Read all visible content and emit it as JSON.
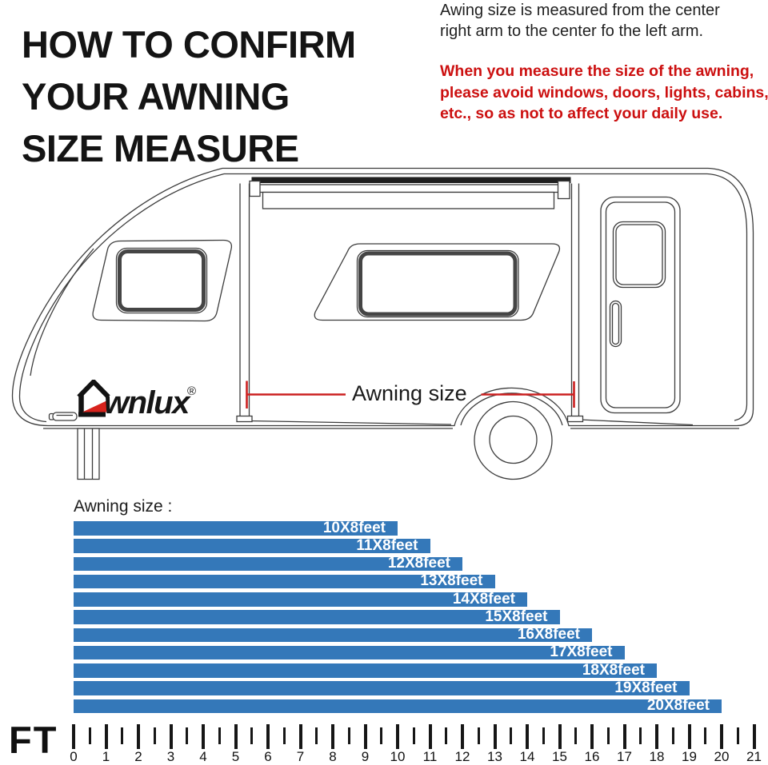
{
  "header": {
    "title_lines": [
      "HOW TO CONFIRM",
      "YOUR AWNING",
      "SIZE MEASURE"
    ],
    "note_lines": [
      "Awing size is measured from the center",
      "right arm to the center fo the left arm."
    ],
    "warning_lines": [
      "When you measure the size of the awning,",
      "please avoid windows, doors, lights, cabins,",
      "etc., so as not to affect your daily use."
    ],
    "warning_color": "#cc1010"
  },
  "diagram": {
    "measure_label": "Awning size",
    "brand": {
      "wordmark_rest": "wnlux",
      "registered_mark": "®",
      "accent_color": "#d8231d"
    },
    "line_color": "#3c3c3c",
    "measure_line_color": "#cc2020"
  },
  "chart_data": {
    "type": "bar",
    "orientation": "horizontal",
    "title": "Awning size :",
    "categories": [
      "10X8feet",
      "11X8feet",
      "12X8feet",
      "13X8feet",
      "14X8feet",
      "15X8feet",
      "16X8feet",
      "17X8feet",
      "18X8feet",
      "19X8feet",
      "20X8feet"
    ],
    "values_ft": [
      10,
      11,
      12,
      13,
      14,
      15,
      16,
      17,
      18,
      19,
      20
    ],
    "bar_color": "#3478b9",
    "bar_label_color": "#ffffff",
    "xlabel": "FT",
    "xlim": [
      0,
      21
    ],
    "tick_interval": 1,
    "minor_tick_interval": 0.5,
    "grid": false,
    "legend": false
  },
  "ruler": {
    "unit_label": "FT",
    "min": 0,
    "max": 21
  }
}
